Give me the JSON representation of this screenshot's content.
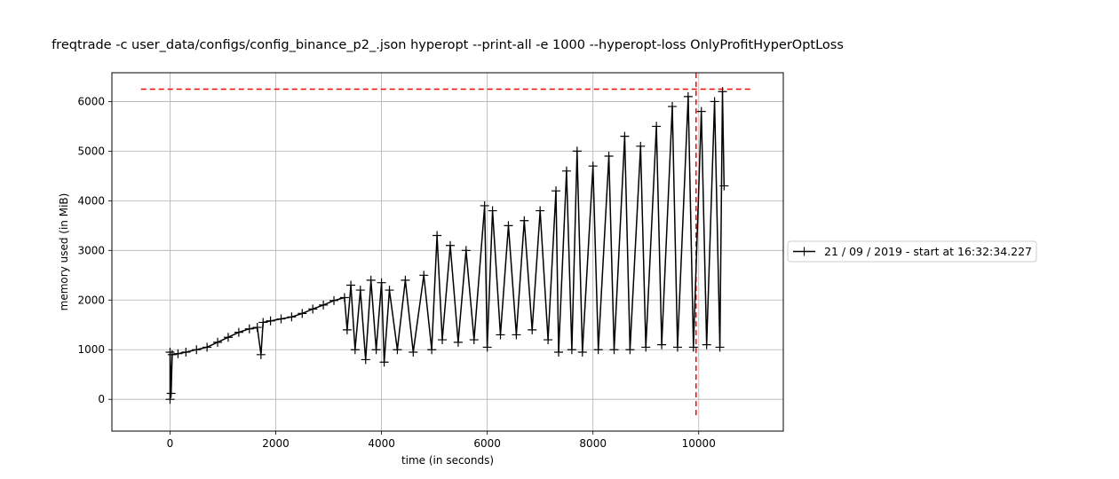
{
  "chart_data": {
    "type": "line",
    "title": "freqtrade -c user_data/configs/config_binance_p2_.json hyperopt --print-all -e 1000 --hyperopt-loss OnlyProfitHyperOptLoss",
    "xlabel": "time (in seconds)",
    "ylabel": "memory used (in MiB)",
    "xlim": [
      -1100,
      11600
    ],
    "ylim": [
      -640,
      6580
    ],
    "x_ticks": [
      0,
      2000,
      4000,
      6000,
      8000,
      10000
    ],
    "y_ticks": [
      0,
      1000,
      2000,
      3000,
      4000,
      5000,
      6000
    ],
    "grid": true,
    "legend_position": "center-right, outside plot",
    "series": [
      {
        "name": "21 / 09 / 2019 - start at 16:32:34.227",
        "color": "#000000",
        "marker": "+",
        "points": [
          [
            0,
            0
          ],
          [
            0,
            950
          ],
          [
            20,
            120
          ],
          [
            40,
            900
          ],
          [
            150,
            920
          ],
          [
            300,
            950
          ],
          [
            500,
            1000
          ],
          [
            700,
            1050
          ],
          [
            900,
            1150
          ],
          [
            1100,
            1250
          ],
          [
            1300,
            1350
          ],
          [
            1500,
            1420
          ],
          [
            1650,
            1450
          ],
          [
            1720,
            900
          ],
          [
            1760,
            1550
          ],
          [
            1900,
            1580
          ],
          [
            2100,
            1620
          ],
          [
            2300,
            1660
          ],
          [
            2500,
            1730
          ],
          [
            2700,
            1820
          ],
          [
            2900,
            1900
          ],
          [
            3100,
            1990
          ],
          [
            3300,
            2050
          ],
          [
            3350,
            1400
          ],
          [
            3420,
            2300
          ],
          [
            3500,
            1000
          ],
          [
            3600,
            2200
          ],
          [
            3700,
            800
          ],
          [
            3800,
            2400
          ],
          [
            3900,
            1000
          ],
          [
            4000,
            2350
          ],
          [
            4050,
            750
          ],
          [
            4150,
            2200
          ],
          [
            4300,
            1000
          ],
          [
            4450,
            2400
          ],
          [
            4600,
            950
          ],
          [
            4800,
            2500
          ],
          [
            4950,
            1000
          ],
          [
            5050,
            3300
          ],
          [
            5150,
            1200
          ],
          [
            5300,
            3100
          ],
          [
            5450,
            1150
          ],
          [
            5600,
            3000
          ],
          [
            5750,
            1200
          ],
          [
            5950,
            3900
          ],
          [
            6000,
            1050
          ],
          [
            6100,
            3800
          ],
          [
            6250,
            1300
          ],
          [
            6400,
            3500
          ],
          [
            6550,
            1300
          ],
          [
            6700,
            3600
          ],
          [
            6850,
            1400
          ],
          [
            7000,
            3800
          ],
          [
            7150,
            1200
          ],
          [
            7300,
            4200
          ],
          [
            7350,
            950
          ],
          [
            7500,
            4600
          ],
          [
            7600,
            1000
          ],
          [
            7700,
            5000
          ],
          [
            7800,
            950
          ],
          [
            8000,
            4700
          ],
          [
            8100,
            1000
          ],
          [
            8300,
            4900
          ],
          [
            8400,
            1000
          ],
          [
            8600,
            5300
          ],
          [
            8700,
            1000
          ],
          [
            8900,
            5100
          ],
          [
            9000,
            1050
          ],
          [
            9200,
            5500
          ],
          [
            9300,
            1100
          ],
          [
            9500,
            5900
          ],
          [
            9600,
            1050
          ],
          [
            9800,
            6100
          ],
          [
            9900,
            1050
          ],
          [
            10050,
            5800
          ],
          [
            10150,
            1100
          ],
          [
            10300,
            6000
          ],
          [
            10400,
            1050
          ],
          [
            10450,
            6200
          ],
          [
            10480,
            4300
          ]
        ]
      }
    ],
    "reference_lines": [
      {
        "orientation": "horizontal",
        "value": 6250,
        "from": -550,
        "to": 11000,
        "color": "#ff0000",
        "style": "dashed"
      },
      {
        "orientation": "vertical",
        "value": 9950,
        "from": -320,
        "to": 6600,
        "color": "#ff0000",
        "style": "dashed"
      }
    ]
  }
}
